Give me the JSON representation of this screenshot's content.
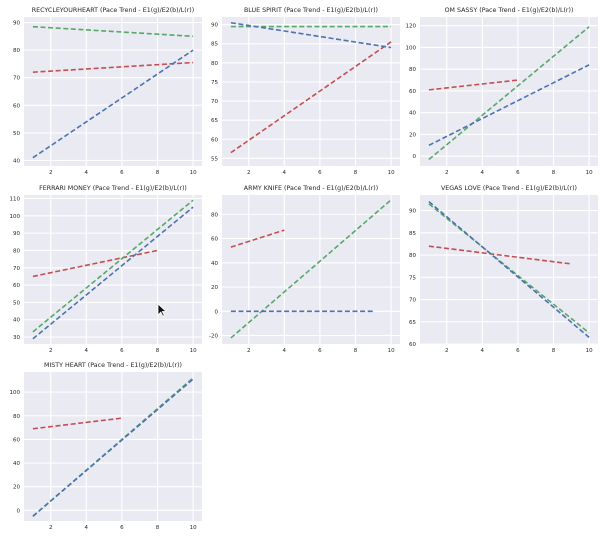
{
  "chart_data": [
    {
      "type": "line",
      "title": "RECYCLEYOURHEART (Pace Trend - E1(g)/E2(b)/L(r))",
      "xlim": [
        0.5,
        10.5
      ],
      "ylim": [
        38,
        92
      ],
      "xticks": [
        2,
        4,
        6,
        8,
        10
      ],
      "yticks": [
        40,
        50,
        60,
        70,
        80,
        90
      ],
      "series": [
        {
          "color": "r",
          "points": [
            [
              1,
              72
            ],
            [
              10,
              75.5
            ]
          ]
        },
        {
          "color": "g",
          "points": [
            [
              1,
              88.5
            ],
            [
              10,
              85
            ]
          ]
        },
        {
          "color": "b",
          "points": [
            [
              1,
              41
            ],
            [
              10,
              80
            ]
          ]
        }
      ]
    },
    {
      "type": "line",
      "title": "BLUE SPIRIT (Pace Trend - E1(g)/E2(b)/L(r))",
      "xlim": [
        0.5,
        10.5
      ],
      "ylim": [
        53,
        92
      ],
      "xticks": [
        2,
        4,
        6,
        8,
        10
      ],
      "yticks": [
        55,
        60,
        65,
        70,
        75,
        80,
        85,
        90
      ],
      "series": [
        {
          "color": "r",
          "points": [
            [
              1,
              56.5
            ],
            [
              10,
              85.5
            ]
          ]
        },
        {
          "color": "g",
          "points": [
            [
              1,
              89.5
            ],
            [
              10,
              89.5
            ]
          ]
        },
        {
          "color": "b",
          "points": [
            [
              1,
              90.5
            ],
            [
              10,
              84
            ]
          ]
        }
      ]
    },
    {
      "type": "line",
      "title": "OM SASSY (Pace Trend - E1(g)/E2(b)/L(r))",
      "xlim": [
        0.5,
        10.5
      ],
      "ylim": [
        -9,
        128
      ],
      "xticks": [
        2,
        4,
        6,
        8,
        10
      ],
      "yticks": [
        0,
        20,
        40,
        60,
        80,
        100,
        120
      ],
      "series": [
        {
          "color": "r",
          "points": [
            [
              1,
              61
            ],
            [
              6,
              70
            ]
          ]
        },
        {
          "color": "g",
          "points": [
            [
              1,
              -3
            ],
            [
              10,
              119
            ]
          ]
        },
        {
          "color": "b",
          "points": [
            [
              1,
              10
            ],
            [
              10,
              84
            ]
          ]
        }
      ]
    },
    {
      "type": "line",
      "title": "FERRARI MONEY (Pace Trend - E1(g)/E2(b)/L(r))",
      "xlim": [
        0.5,
        10.5
      ],
      "ylim": [
        26,
        112
      ],
      "xticks": [
        2,
        4,
        6,
        8,
        10
      ],
      "yticks": [
        30,
        40,
        50,
        60,
        70,
        80,
        90,
        100,
        110
      ],
      "series": [
        {
          "color": "r",
          "points": [
            [
              1,
              65
            ],
            [
              8,
              80
            ]
          ]
        },
        {
          "color": "g",
          "points": [
            [
              1,
              33
            ],
            [
              10,
              109
            ]
          ]
        },
        {
          "color": "b",
          "points": [
            [
              1,
              29
            ],
            [
              10,
              105
            ]
          ]
        }
      ]
    },
    {
      "type": "line",
      "title": "ARMY KNIFE (Pace Trend - E1(g)/E2(b)/L(r))",
      "xlim": [
        0.5,
        10.5
      ],
      "ylim": [
        -27,
        96
      ],
      "xticks": [
        2,
        4,
        6,
        8,
        10
      ],
      "yticks": [
        -20,
        0,
        20,
        40,
        60,
        80
      ],
      "series": [
        {
          "color": "r",
          "points": [
            [
              1,
              53
            ],
            [
              4,
              67
            ]
          ]
        },
        {
          "color": "g",
          "points": [
            [
              1,
              -22
            ],
            [
              10,
              92
            ]
          ]
        },
        {
          "color": "b",
          "points": [
            [
              1,
              0
            ],
            [
              9,
              0
            ]
          ]
        }
      ]
    },
    {
      "type": "line",
      "title": "VEGAS LOVE (Pace Trend - E1(g)/E2(b)/L(r))",
      "xlim": [
        0.5,
        10.5
      ],
      "ylim": [
        60,
        93.5
      ],
      "xticks": [
        2,
        4,
        6,
        8,
        10
      ],
      "yticks": [
        60,
        65,
        70,
        75,
        80,
        85,
        90
      ],
      "series": [
        {
          "color": "r",
          "points": [
            [
              1,
              82
            ],
            [
              9,
              78
            ]
          ]
        },
        {
          "color": "g",
          "points": [
            [
              1,
              91.5
            ],
            [
              10,
              62.5
            ]
          ]
        },
        {
          "color": "b",
          "points": [
            [
              1,
              92
            ],
            [
              10,
              61.5
            ]
          ]
        }
      ]
    },
    {
      "type": "line",
      "title": "MISTY HEART (Pace Trend - E1(g)/E2(b)/L(r))",
      "xlim": [
        0.5,
        10.5
      ],
      "ylim": [
        -9,
        117
      ],
      "xticks": [
        2,
        4,
        6,
        8,
        10
      ],
      "yticks": [
        0,
        20,
        40,
        60,
        80,
        100
      ],
      "series": [
        {
          "color": "r",
          "points": [
            [
              1,
              69
            ],
            [
              6,
              78
            ]
          ]
        },
        {
          "color": "g",
          "points": [
            [
              1,
              -5
            ],
            [
              10,
              112
            ]
          ]
        },
        {
          "color": "b",
          "points": [
            [
              1,
              -5
            ],
            [
              10,
              111
            ]
          ]
        }
      ]
    }
  ],
  "colors": {
    "r": "#c44e52",
    "g": "#55a868",
    "b": "#4c72b0",
    "plot_bg": "#eaeaf2",
    "grid": "#ffffff",
    "text": "#262626"
  }
}
